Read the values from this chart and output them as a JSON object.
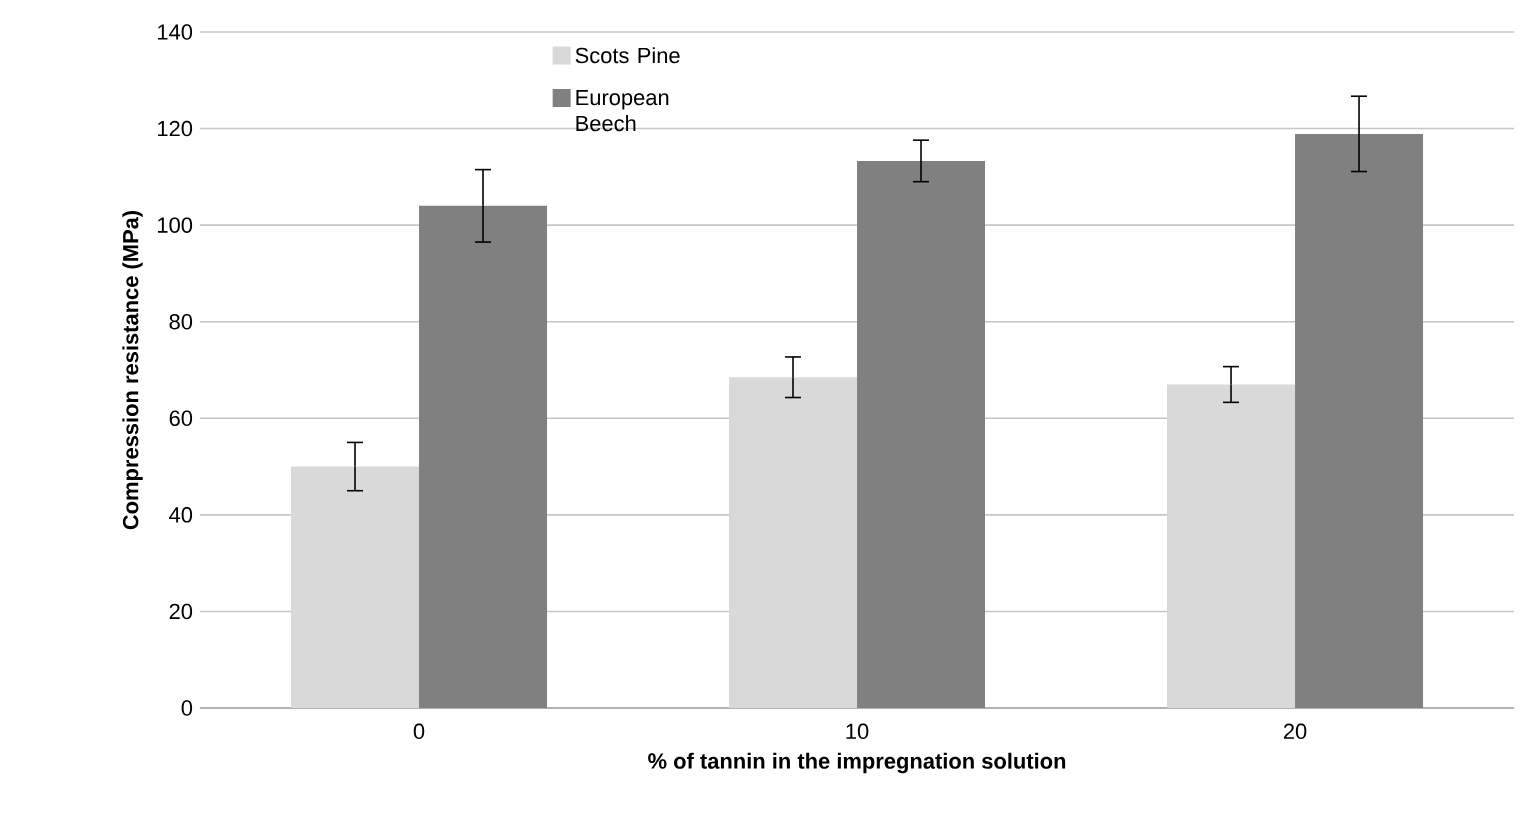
{
  "chart_data": {
    "type": "bar",
    "xlabel": "% of tannin in the impregnation solution",
    "ylabel": "Compression resistance (MPa)",
    "categories": [
      "0",
      "10",
      "20"
    ],
    "series": [
      {
        "name": "Scots Pine",
        "color": "#d9d9d9",
        "values": [
          50,
          68.5,
          67
        ],
        "errors": [
          5,
          4.2,
          3.7
        ]
      },
      {
        "name": "European Beech",
        "color": "#808080",
        "values": [
          104,
          113.3,
          118.9
        ],
        "errors": [
          7.5,
          4.3,
          7.8
        ]
      }
    ],
    "ylim": [
      0,
      140
    ],
    "yticks": [
      0,
      20,
      40,
      60,
      80,
      100,
      120,
      140
    ],
    "grid": "y",
    "legend": "top"
  }
}
